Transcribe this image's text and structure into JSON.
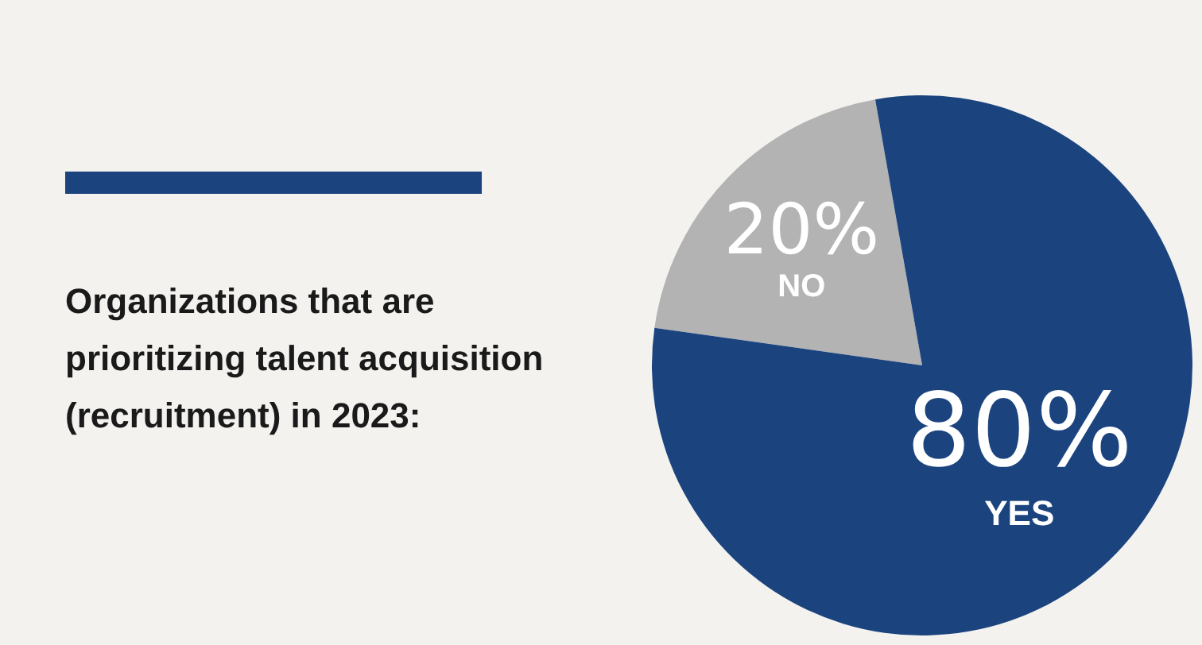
{
  "chart_data": {
    "type": "pie",
    "title": "Organizations that are prioritizing talent acquisition (recruitment) in 2023:",
    "categories": [
      "NO",
      "YES"
    ],
    "values": [
      20,
      80
    ],
    "value_labels": [
      "20%",
      "80%"
    ],
    "colors": [
      "#b3b3b3",
      "#1b447f"
    ],
    "legend": false
  }
}
